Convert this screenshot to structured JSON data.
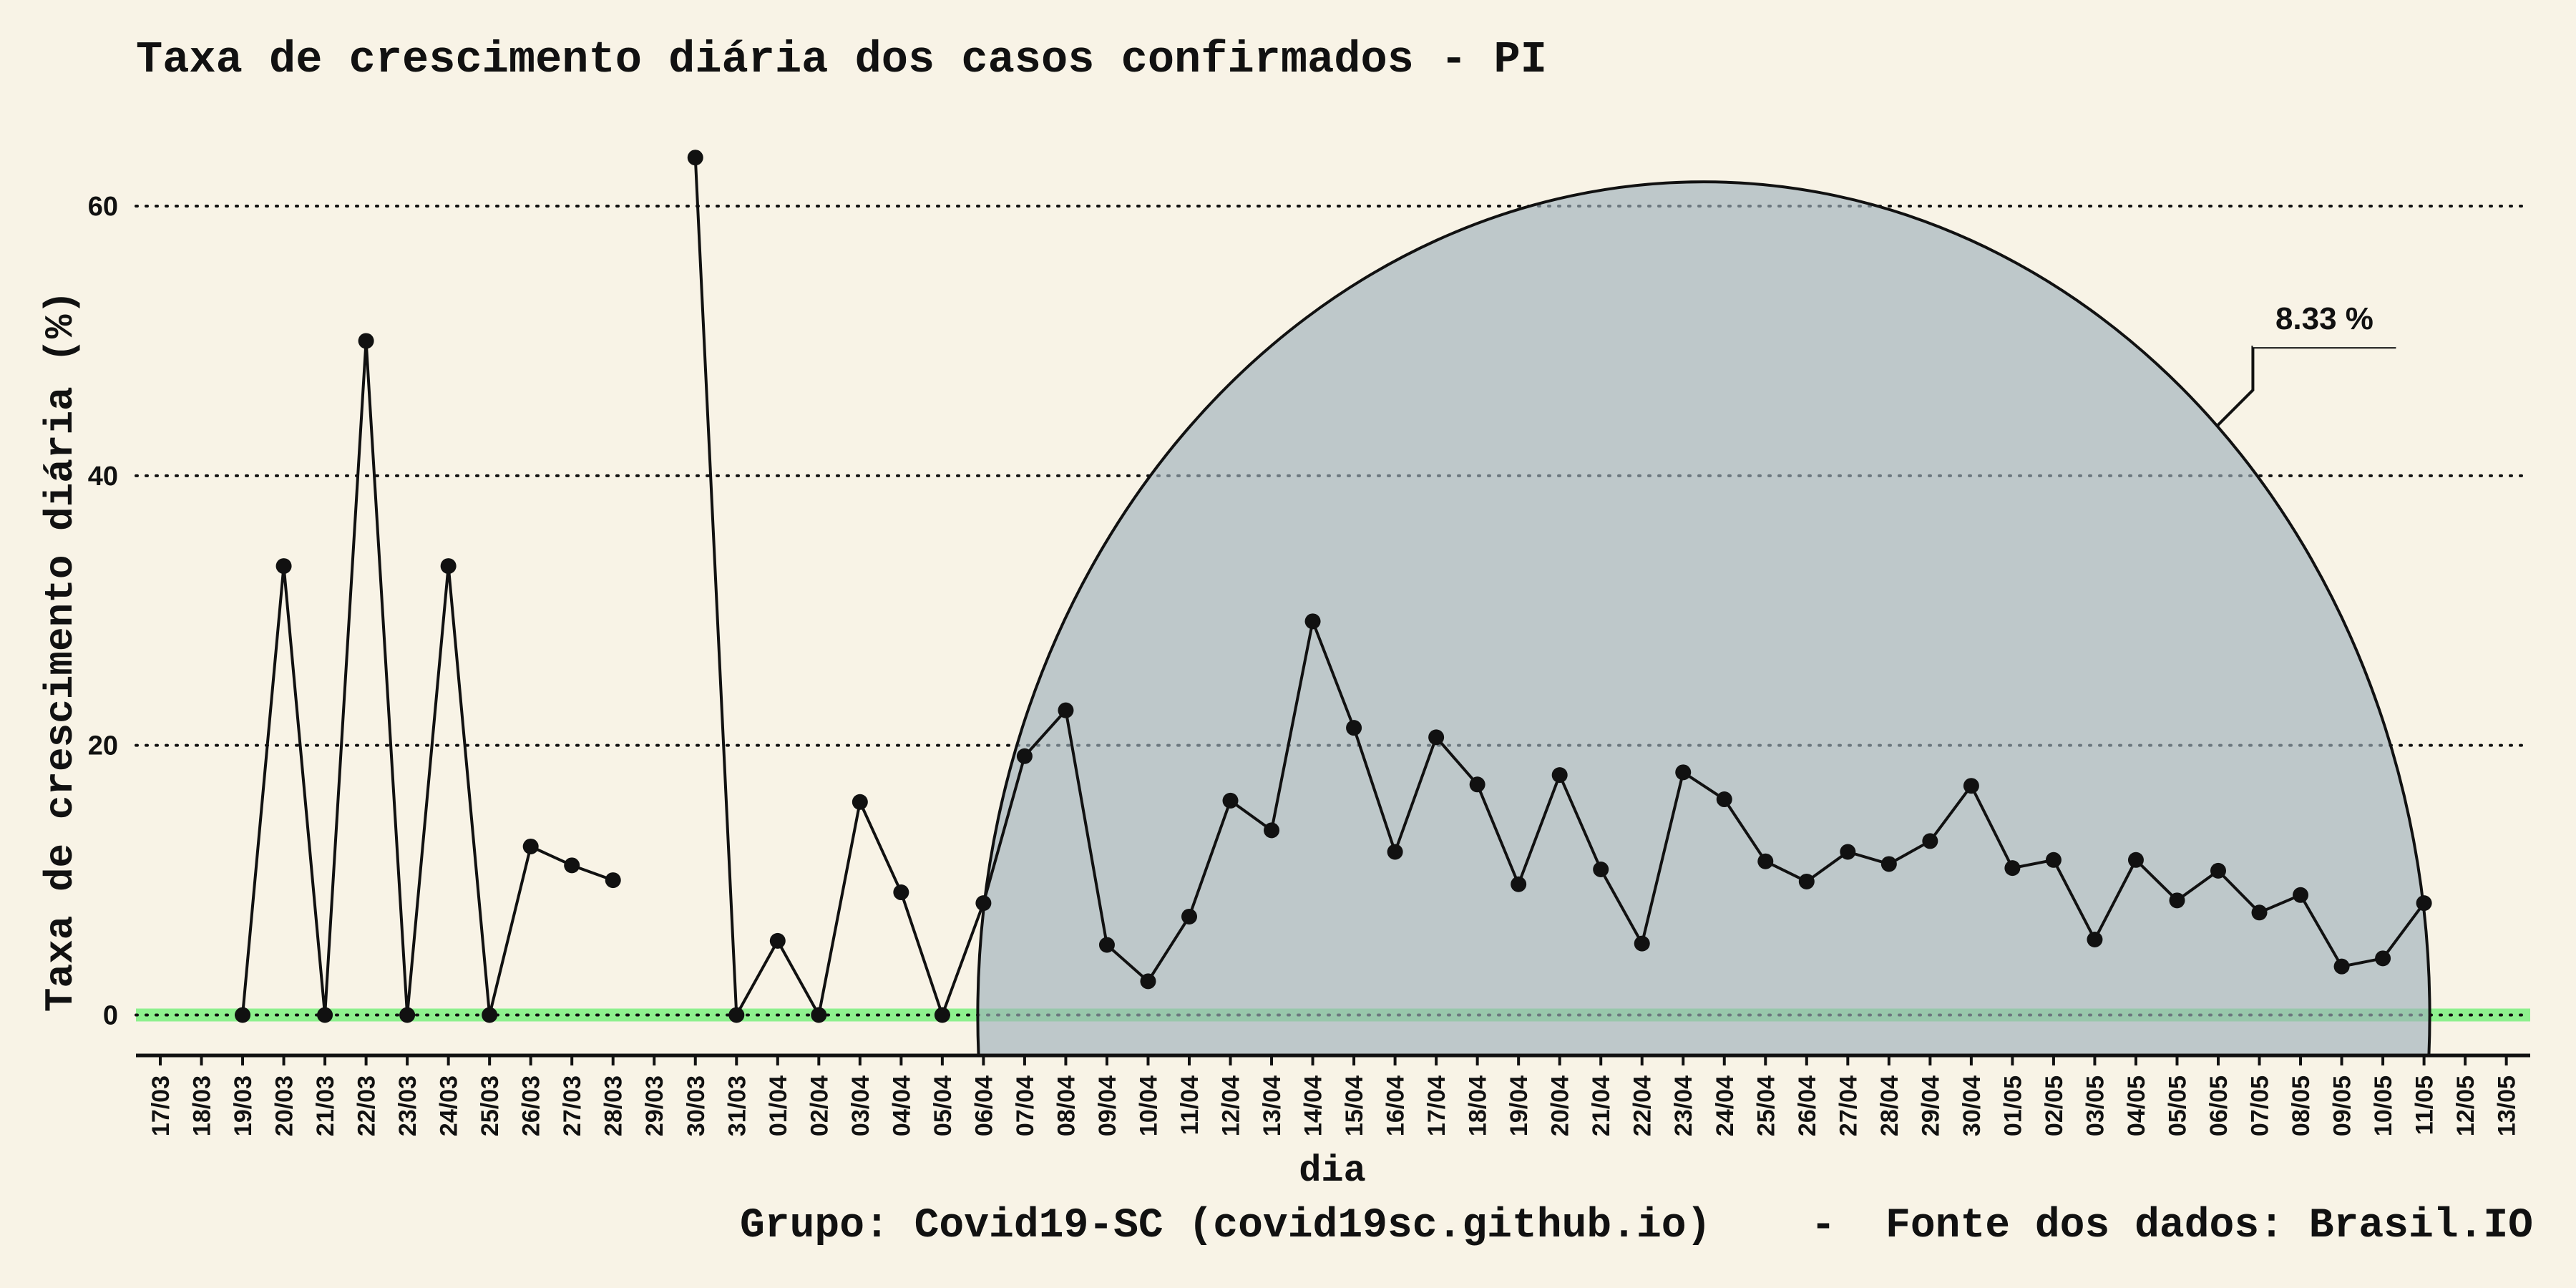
{
  "chart_data": {
    "type": "line",
    "title": "Taxa de crescimento diária dos casos confirmados - PI",
    "xlabel": "dia",
    "ylabel": "Taxa de crescimento diária (%)",
    "caption": "Grupo: Covid19-SC (covid19sc.github.io)    -  Fonte dos dados: Brasil.IO",
    "ylim": [
      -3,
      66
    ],
    "yticks": [
      0,
      20,
      40,
      60
    ],
    "grid": "horizontal-dotted",
    "categories": [
      "17/03",
      "18/03",
      "19/03",
      "20/03",
      "21/03",
      "22/03",
      "23/03",
      "24/03",
      "25/03",
      "26/03",
      "27/03",
      "28/03",
      "29/03",
      "30/03",
      "31/03",
      "01/04",
      "02/04",
      "03/04",
      "04/04",
      "05/04",
      "06/04",
      "07/04",
      "08/04",
      "09/04",
      "10/04",
      "11/04",
      "12/04",
      "13/04",
      "14/04",
      "15/04",
      "16/04",
      "17/04",
      "18/04",
      "19/04",
      "20/04",
      "21/04",
      "22/04",
      "23/04",
      "24/04",
      "25/04",
      "26/04",
      "27/04",
      "28/04",
      "29/04",
      "30/04",
      "01/05",
      "02/05",
      "03/05",
      "04/05",
      "05/05",
      "06/05",
      "07/05",
      "08/05",
      "09/05",
      "10/05",
      "11/05",
      "12/05",
      "13/05"
    ],
    "series": [
      {
        "values": [
          null,
          null,
          0,
          33.3,
          0,
          50,
          0,
          33.3,
          0,
          12.5,
          11.1,
          10,
          null,
          63.6,
          0,
          5.5,
          0,
          15.8,
          9.1,
          0,
          8.3,
          19.2,
          22.6,
          5.2,
          2.5,
          7.3,
          15.9,
          13.7,
          29.2,
          21.3,
          12.1,
          20.6,
          17.1,
          9.7,
          17.8,
          10.8,
          5.3,
          18.0,
          16.0,
          11.4,
          9.9,
          12.1,
          11.2,
          12.9,
          17.0,
          10.9,
          11.5,
          5.6,
          11.5,
          8.5,
          10.7,
          7.6,
          8.9,
          3.6,
          4.2,
          8.3,
          null,
          null
        ]
      }
    ],
    "zero_band_color": "#8ef08e",
    "highlight": {
      "shape": "semicircle",
      "from": "06/04",
      "to": "11/05",
      "fill_color": "#9eb0bb",
      "label": "8.33 %"
    },
    "colors": {
      "background": "#f8f3e6",
      "line": "#111111",
      "point": "#111111"
    }
  }
}
